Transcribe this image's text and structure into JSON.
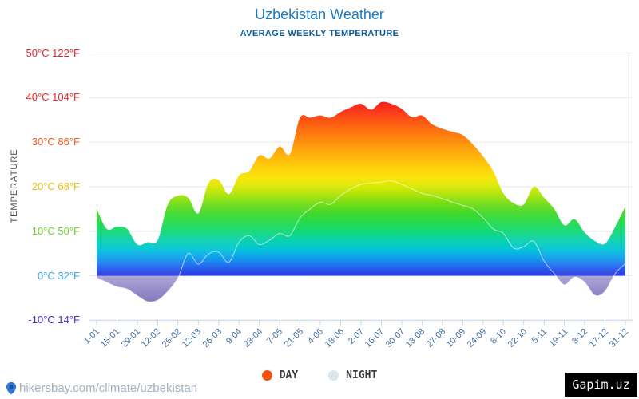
{
  "title": "Uzbekistan Weather",
  "subtitle": "AVERAGE WEEKLY TEMPERATURE",
  "watermark": "Gapim.uz",
  "footer": {
    "url": "hikersbay.com/climate/uzbekistan"
  },
  "legend": [
    {
      "label": "DAY",
      "color": "#f4510b"
    },
    {
      "label": "NIGHT",
      "color": "#dde5ee"
    }
  ],
  "y_axis": {
    "title": "TEMPERATURE",
    "labels": [
      {
        "text": "50°C 122°F",
        "temp": 50,
        "color": "#e8212e"
      },
      {
        "text": "40°C 104°F",
        "temp": 40,
        "color": "#ef2525"
      },
      {
        "text": "30°C 86°F",
        "temp": 30,
        "color": "#f8581d"
      },
      {
        "text": "20°C 68°F",
        "temp": 20,
        "color": "#e3c112"
      },
      {
        "text": "10°C 50°F",
        "temp": 10,
        "color": "#6fd02b"
      },
      {
        "text": "0°C 32°F",
        "temp": 0,
        "color": "#3aabf0"
      },
      {
        "text": "-10°C 14°F",
        "temp": -10,
        "color": "#4231d4"
      }
    ]
  },
  "x_axis": {
    "labels": [
      "1-01",
      "15-01",
      "29-01",
      "12-02",
      "26-02",
      "12-03",
      "26-03",
      "9-04",
      "23-04",
      "7-05",
      "21-05",
      "4-06",
      "18-06",
      "2-07",
      "16-07",
      "30-07",
      "13-08",
      "27-08",
      "10-09",
      "24-09",
      "8-10",
      "22-10",
      "5-11",
      "19-11",
      "3-12",
      "17-12",
      "31-12"
    ]
  },
  "chart_data": {
    "type": "area",
    "title": "Uzbekistan Weather",
    "subtitle": "AVERAGE WEEKLY TEMPERATURE",
    "ylabel": "TEMPERATURE",
    "ylim": [
      -10,
      50
    ],
    "y_ticks_c": [
      50,
      40,
      30,
      20,
      10,
      0,
      -10
    ],
    "y_ticks_f": [
      122,
      104,
      86,
      68,
      50,
      32,
      14
    ],
    "x_tick_labels": [
      "1-01",
      "15-01",
      "29-01",
      "12-02",
      "26-02",
      "12-03",
      "26-03",
      "9-04",
      "23-04",
      "7-05",
      "21-05",
      "4-06",
      "18-06",
      "2-07",
      "16-07",
      "30-07",
      "13-08",
      "27-08",
      "10-09",
      "24-09",
      "8-10",
      "22-10",
      "5-11",
      "19-11",
      "3-12",
      "17-12",
      "31-12"
    ],
    "grid": true,
    "legend_position": "bottom",
    "series": [
      {
        "name": "DAY",
        "values": [
          15,
          10.5,
          11,
          10.5,
          7,
          7.5,
          8,
          16,
          18,
          17.5,
          14,
          20.8,
          21.5,
          18.3,
          22.5,
          23.5,
          27,
          26.3,
          29,
          27.3,
          35.5,
          35.5,
          36,
          35.5,
          36.8,
          37.8,
          38.6,
          37.3,
          39,
          38.6,
          37.5,
          35.6,
          36,
          34,
          33,
          32.3,
          31.6,
          29.5,
          26.8,
          23.5,
          18.5,
          16.3,
          16,
          20,
          17.5,
          15,
          11.3,
          12.7,
          9.7,
          7.8,
          7.2,
          11,
          15.6
        ]
      },
      {
        "name": "NIGHT",
        "values": [
          -0.5,
          -1.5,
          -2.5,
          -3,
          -4.5,
          -5.8,
          -5.5,
          -3.5,
          -0.5,
          5,
          2.6,
          4.9,
          5.3,
          3,
          7.5,
          9,
          7,
          8,
          9.5,
          9,
          13,
          15,
          16.5,
          16,
          18,
          19.5,
          20.5,
          20.8,
          21,
          21.3,
          20.5,
          19.5,
          18.5,
          18,
          17.3,
          16.5,
          15.8,
          15,
          13,
          10.5,
          9.5,
          6.2,
          6.5,
          7.7,
          3.3,
          0.5,
          -2,
          -0.3,
          -1.5,
          -4.4,
          -3.5,
          0.5,
          2.7
        ]
      }
    ],
    "temperature_color_scale": [
      {
        "t": 50,
        "c": "#e60010"
      },
      {
        "t": 40,
        "c": "#f20717"
      },
      {
        "t": 37,
        "c": "#fb2d10"
      },
      {
        "t": 34,
        "c": "#fd5806"
      },
      {
        "t": 31,
        "c": "#fe7e01"
      },
      {
        "t": 28,
        "c": "#ffa300"
      },
      {
        "t": 25,
        "c": "#ffc600"
      },
      {
        "t": 22,
        "c": "#f9e400"
      },
      {
        "t": 20,
        "c": "#d8e900"
      },
      {
        "t": 18,
        "c": "#a5e307"
      },
      {
        "t": 16,
        "c": "#6edc15"
      },
      {
        "t": 14,
        "c": "#3ed82a"
      },
      {
        "t": 12,
        "c": "#23da48"
      },
      {
        "t": 10,
        "c": "#12d876"
      },
      {
        "t": 8,
        "c": "#07d2aa"
      },
      {
        "t": 6,
        "c": "#02c5d7"
      },
      {
        "t": 4.5,
        "c": "#09a9e9"
      },
      {
        "t": 3,
        "c": "#1a83f0"
      },
      {
        "t": 1.5,
        "c": "#2458ec"
      },
      {
        "t": 0.2,
        "c": "#2b3ae0"
      },
      {
        "t": 0,
        "c": "#3336d6"
      },
      {
        "t": -0.05,
        "c": "#9c94cc"
      },
      {
        "t": -3,
        "c": "#8176bf"
      },
      {
        "t": -6,
        "c": "#6a58ad"
      },
      {
        "t": -10,
        "c": "#5d49a0"
      }
    ]
  },
  "colors": {
    "grid": "#e6e6e6",
    "axis": "#ccd6e0",
    "x_label": "#426f9c"
  }
}
